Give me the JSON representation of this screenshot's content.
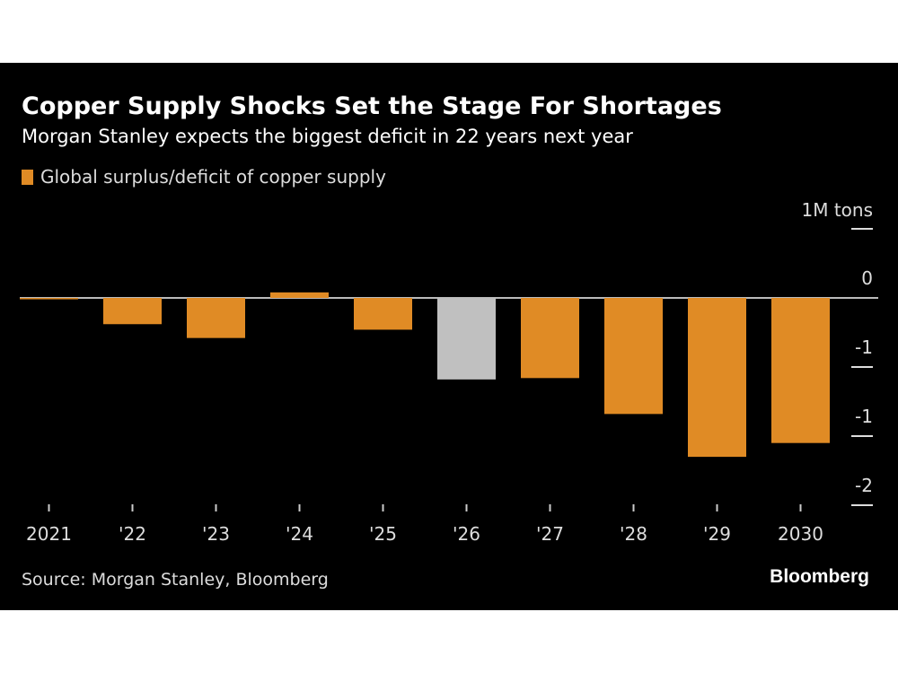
{
  "title": "Copper Supply Shocks Set the Stage For Shortages",
  "subtitle": "Morgan Stanley expects the biggest deficit in 22 years next year",
  "source": "Source: Morgan Stanley, Bloomberg",
  "logo": "Bloomberg",
  "colors": {
    "bar": "#e08b25",
    "highlight": "#c0c0c0",
    "background": "#000000"
  },
  "chart_data": {
    "type": "bar",
    "title": "Copper Supply Shocks Set the Stage For Shortages",
    "legend": [
      "Global surplus/deficit of copper supply"
    ],
    "legend_placement": "top-left",
    "unit_label": "1M  tons",
    "categories": [
      "2021",
      "'22",
      "'23",
      "'24",
      "'25",
      "'26",
      "'27",
      "'28",
      "'29",
      "2030"
    ],
    "values": [
      -0.01,
      -0.19,
      -0.29,
      0.04,
      -0.23,
      -0.59,
      -0.58,
      -0.84,
      -1.15,
      -1.05
    ],
    "highlighted": [
      "'26"
    ],
    "yticks": [
      0.5,
      0,
      -0.5,
      -1.0,
      -1.5
    ],
    "ytick_labels": [
      "",
      "0",
      "-1",
      "-1",
      "-2"
    ],
    "ylim": [
      -1.5,
      0.5
    ],
    "grid": false
  }
}
